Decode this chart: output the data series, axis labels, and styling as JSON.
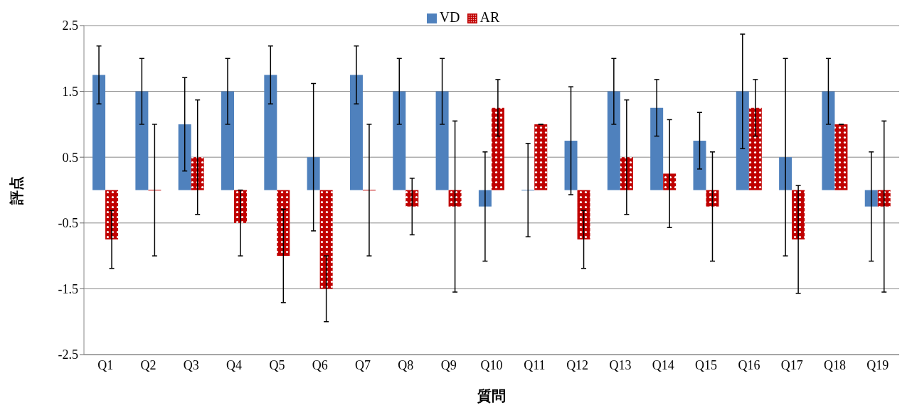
{
  "chart_data": {
    "type": "bar",
    "xlabel": "質問",
    "ylabel": "評点",
    "categories": [
      "Q1",
      "Q2",
      "Q3",
      "Q4",
      "Q5",
      "Q6",
      "Q7",
      "Q8",
      "Q9",
      "Q10",
      "Q11",
      "Q12",
      "Q13",
      "Q14",
      "Q15",
      "Q16",
      "Q17",
      "Q18",
      "Q19"
    ],
    "series": [
      {
        "name": "VD",
        "color": "#4f81bd",
        "values": [
          1.75,
          1.5,
          1.0,
          1.5,
          1.75,
          0.5,
          1.75,
          1.5,
          1.5,
          -0.25,
          0,
          0.75,
          1.5,
          1.25,
          0.75,
          1.5,
          0.5,
          1.5,
          -0.25
        ],
        "errors": [
          0.44,
          0.5,
          0.71,
          0.5,
          0.44,
          1.12,
          0.44,
          0.5,
          0.5,
          0.83,
          0.71,
          0.82,
          0.5,
          0.43,
          0.43,
          0.87,
          1.5,
          0.5,
          0.83
        ]
      },
      {
        "name": "AR",
        "color": "#c00000",
        "values": [
          -0.75,
          0,
          0.5,
          -0.5,
          -1.0,
          -1.5,
          0,
          -0.25,
          -0.25,
          1.25,
          1.0,
          -0.75,
          0.5,
          0.25,
          -0.25,
          1.25,
          -0.75,
          1.0,
          -0.25
        ],
        "errors": [
          0.44,
          1.0,
          0.87,
          0.5,
          0.71,
          0.5,
          1.0,
          0.43,
          1.3,
          0.43,
          0,
          0.44,
          0.87,
          0.82,
          0.83,
          0.43,
          0.82,
          0,
          1.3
        ]
      }
    ],
    "ylim": [
      -2.5,
      2.5
    ],
    "yticks": [
      -2.5,
      -1.5,
      -0.5,
      0.5,
      1.5,
      2.5
    ],
    "grid": "y",
    "legend": "top"
  }
}
